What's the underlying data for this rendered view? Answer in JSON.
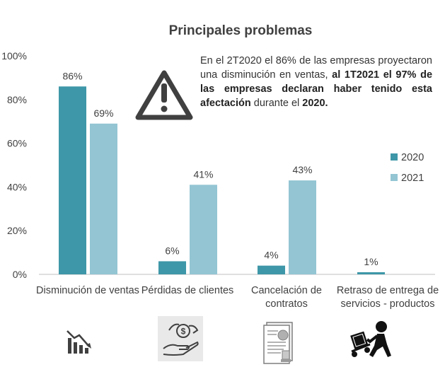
{
  "chart_data": {
    "type": "bar",
    "title": "Principales problemas",
    "categories": [
      [
        "Disminución de ventas"
      ],
      [
        "Pérdidas de clientes"
      ],
      [
        "Cancelación de",
        "contratos"
      ],
      [
        "Retraso de entrega de",
        "servicios - productos"
      ]
    ],
    "series": [
      {
        "name": "2020",
        "values": [
          86,
          6,
          4,
          1
        ],
        "labels": [
          "86%",
          "6%",
          "4%",
          "1%"
        ],
        "color": "#3e97a8"
      },
      {
        "name": "2021",
        "values": [
          69,
          41,
          43,
          null
        ],
        "labels": [
          "69%",
          "41%",
          "43%",
          ""
        ],
        "color": "#93c5d3"
      }
    ],
    "ylim": [
      0,
      100
    ],
    "yticks": [
      0,
      20,
      40,
      60,
      80,
      100
    ],
    "ytick_labels": [
      "0%",
      "20%",
      "40%",
      "60%",
      "80%",
      "100%"
    ],
    "legend_position": "right",
    "grid": false
  },
  "annotation": {
    "text_normal": "En el 2T2020 el 86% de las empresas proyectaron una disminución en ventas, ",
    "text_bold_1": "al 1T2021 el 97% de las empresas declaran haber tenido esta afectación",
    "text_normal_2": " durante el ",
    "text_bold_2": "2020."
  },
  "icons": [
    "warning-icon",
    "declining-chart-icon",
    "money-hand-icon",
    "contract-icon",
    "delivery-person-icon"
  ]
}
